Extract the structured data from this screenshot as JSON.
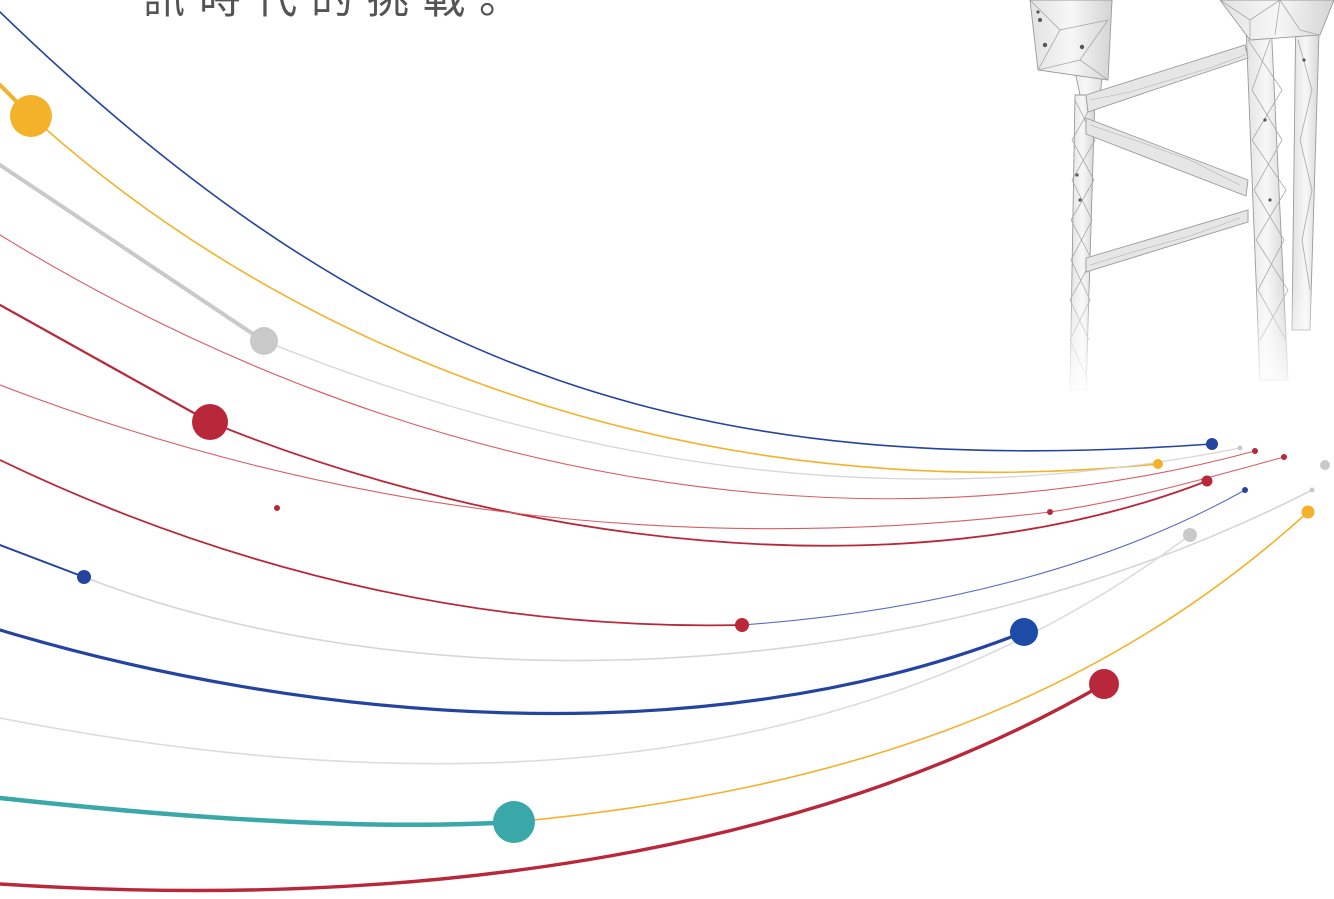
{
  "headline": "訊時代的挑戰。",
  "colors": {
    "blue": "#2444a0",
    "blue_light": "#5a6ec0",
    "yellow": "#f4b12a",
    "grey": "#c9c9c9",
    "red": "#b8283a",
    "red_light": "#d75e63",
    "teal": "#3aa8a8",
    "tower_line": "#9a9a9a"
  },
  "icons": {
    "illustration": "transmission-tower-illustration"
  }
}
